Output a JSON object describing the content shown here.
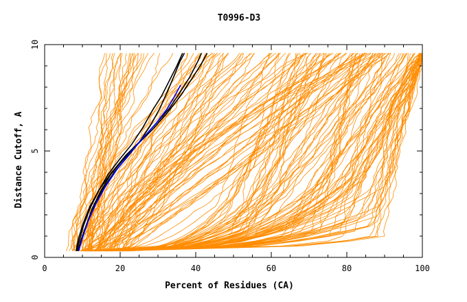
{
  "chart_data": {
    "type": "line",
    "title": "T0996-D3",
    "xlabel": "Percent of Residues (CA)",
    "ylabel": "Distance Cutoff, A",
    "xlim": [
      0,
      100
    ],
    "ylim": [
      0,
      10
    ],
    "x_ticks": [
      0,
      20,
      40,
      60,
      80,
      100
    ],
    "y_ticks": [
      0,
      5,
      10
    ],
    "grid": false,
    "legend": "none",
    "colors": {
      "background_curves": "#ff8c00",
      "highlight_black": "#000000",
      "highlight_blue": "#0000ff"
    },
    "highlighted_series": [
      {
        "color": "#000000",
        "x": [
          8.5,
          9.2,
          10.3,
          12.0,
          14.2,
          16.8,
          19.8,
          23.0,
          26.0,
          28.5,
          31.0,
          33.0,
          35.0,
          36.5
        ],
        "y": [
          0.3,
          0.8,
          1.5,
          2.3,
          3.1,
          3.9,
          4.6,
          5.3,
          6.1,
          6.9,
          7.6,
          8.3,
          9.0,
          9.6
        ]
      },
      {
        "color": "#000000",
        "x": [
          9.0,
          9.8,
          11.2,
          13.0,
          15.4,
          18.4,
          21.8,
          25.0,
          28.0,
          30.5,
          32.5,
          34.2,
          35.8,
          37.0
        ],
        "y": [
          0.3,
          0.9,
          1.6,
          2.4,
          3.2,
          4.0,
          4.7,
          5.4,
          6.2,
          7.0,
          7.8,
          8.5,
          9.2,
          9.6
        ]
      },
      {
        "color": "#000000",
        "x": [
          8.8,
          9.6,
          11.0,
          12.6,
          14.8,
          17.5,
          20.8,
          24.5,
          28.5,
          32.5,
          36.0,
          39.0,
          41.5,
          43.0
        ],
        "y": [
          0.3,
          0.8,
          1.5,
          2.3,
          3.1,
          3.9,
          4.6,
          5.3,
          6.0,
          6.8,
          7.6,
          8.4,
          9.1,
          9.6
        ]
      },
      {
        "color": "#000000",
        "x": [
          8.3,
          9.0,
          10.2,
          12.0,
          14.5,
          17.8,
          21.5,
          25.5,
          29.5,
          33.0,
          36.0,
          38.5,
          40.5,
          41.5
        ],
        "y": [
          0.3,
          0.9,
          1.6,
          2.4,
          3.2,
          4.0,
          4.8,
          5.5,
          6.3,
          7.0,
          7.8,
          8.5,
          9.2,
          9.6
        ]
      },
      {
        "color": "#0000ff",
        "x": [
          9.0,
          10.0,
          11.5,
          13.5,
          16.0,
          19.0,
          22.5,
          26.0,
          29.5,
          32.5,
          34.5,
          36.0
        ],
        "y": [
          0.3,
          0.9,
          1.7,
          2.5,
          3.3,
          4.1,
          4.9,
          5.6,
          6.3,
          7.0,
          7.6,
          8.1
        ]
      }
    ]
  }
}
